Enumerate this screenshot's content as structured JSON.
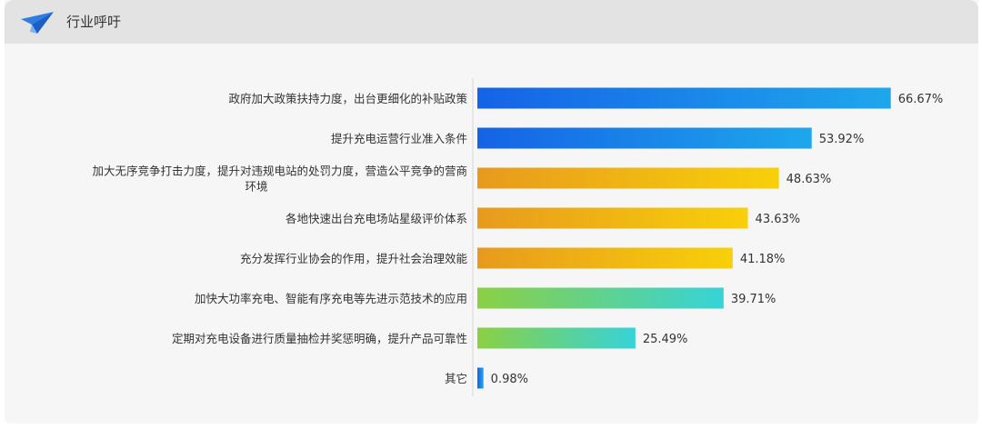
{
  "header": {
    "title": "行业呼吁",
    "icon": "paper-plane-icon",
    "accent": "#2f7de1"
  },
  "chart_data": {
    "type": "bar",
    "orientation": "horizontal",
    "title": "",
    "xlabel": "",
    "ylabel": "",
    "xlim": [
      0,
      100
    ],
    "unit": "%",
    "categories": [
      [
        "政府加大政策扶持力度，出台更细化的补贴政策"
      ],
      [
        "提升充电运营行业准入条件"
      ],
      [
        "加大无序竞争打击力度，提升对违规电站的处罚力度，营造公平竞争的营商",
        "环境"
      ],
      [
        "各地快速出台充电场站星级评价体系"
      ],
      [
        "充分发挥行业协会的作用，提升社会治理效能"
      ],
      [
        "加快大功率充电、智能有序充电等先进示范技术的应用"
      ],
      [
        "定期对充电设备进行质量抽检并奖惩明确，提升产品可靠性"
      ],
      [
        "其它"
      ]
    ],
    "values": [
      66.67,
      53.92,
      48.63,
      43.63,
      41.18,
      39.71,
      25.49,
      0.98
    ],
    "value_labels": [
      "66.67%",
      "53.92%",
      "48.63%",
      "43.63%",
      "41.18%",
      "39.71%",
      "25.49%",
      "0.98%"
    ],
    "bar_colors": [
      [
        "#1563e6",
        "#1ea7ec"
      ],
      [
        "#1563e6",
        "#1ea7ec"
      ],
      [
        "#e79a1d",
        "#f8d00a"
      ],
      [
        "#e79a1d",
        "#f8d00a"
      ],
      [
        "#e79a1d",
        "#f8d00a"
      ],
      [
        "#8bd044",
        "#36d3d8"
      ],
      [
        "#8bd044",
        "#36d3d8"
      ],
      [
        "#1563e6",
        "#1ea7ec"
      ]
    ],
    "grid": false,
    "legend": "none"
  }
}
